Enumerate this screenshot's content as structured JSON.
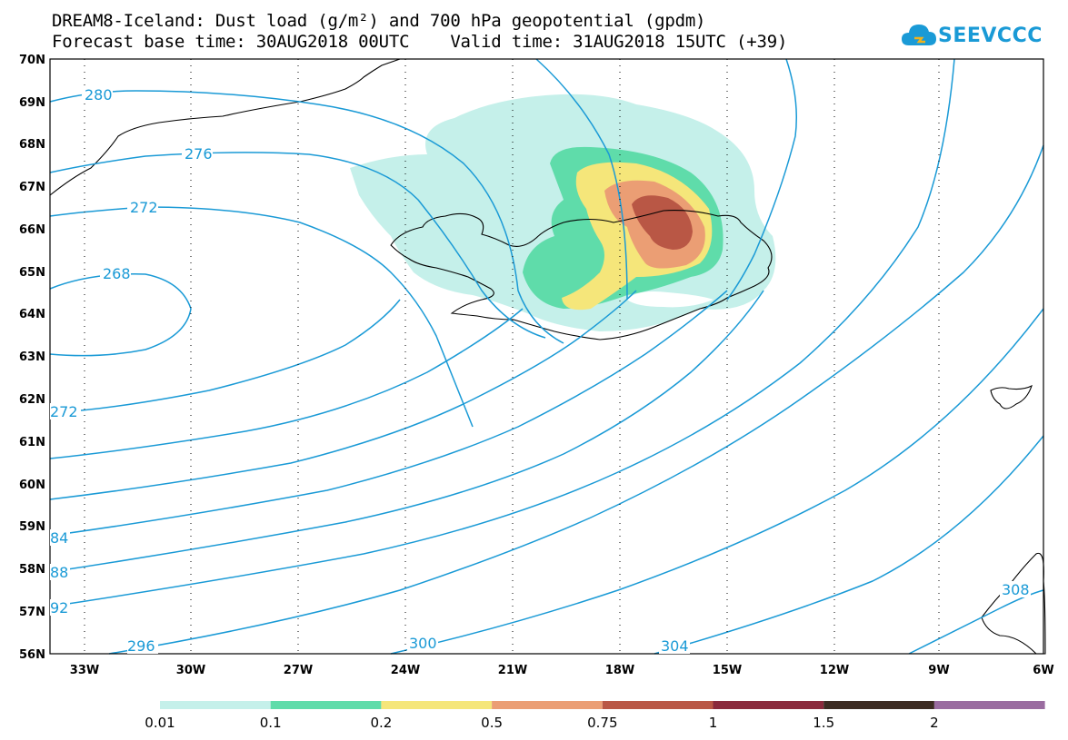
{
  "title": {
    "line1": "DREAM8-Iceland: Dust load (g/m²) and 700 hPa geopotential (gpdm)",
    "line2": "Forecast base time: 30AUG2018 00UTC    Valid time: 31AUG2018 15UTC (+39)"
  },
  "logo": {
    "text": "SEEVCCC",
    "icon": "cloud-icon",
    "color": "#1a9ad6"
  },
  "map": {
    "lat_labels": [
      "70N",
      "69N",
      "68N",
      "67N",
      "66N",
      "65N",
      "64N",
      "63N",
      "62N",
      "61N",
      "60N",
      "59N",
      "58N",
      "57N",
      "56N"
    ],
    "lon_labels": [
      "33W",
      "30W",
      "27W",
      "24W",
      "21W",
      "18W",
      "15W",
      "12W",
      "9W",
      "6W"
    ],
    "contour_color": "#1a9ad6",
    "contour_labels": [
      "280",
      "276",
      "272",
      "268",
      "272",
      "84",
      "88",
      "92",
      "296",
      "300",
      "304",
      "308"
    ]
  },
  "legend": {
    "colors": [
      "#c5f0ea",
      "#5fdcaa",
      "#f5e67a",
      "#eb9e74",
      "#b95745",
      "#8a2a3c",
      "#3c2b22",
      "#9a6ca0"
    ],
    "labels": [
      "0.01",
      "0.1",
      "0.2",
      "0.5",
      "0.75",
      "1",
      "1.5",
      "2"
    ]
  }
}
